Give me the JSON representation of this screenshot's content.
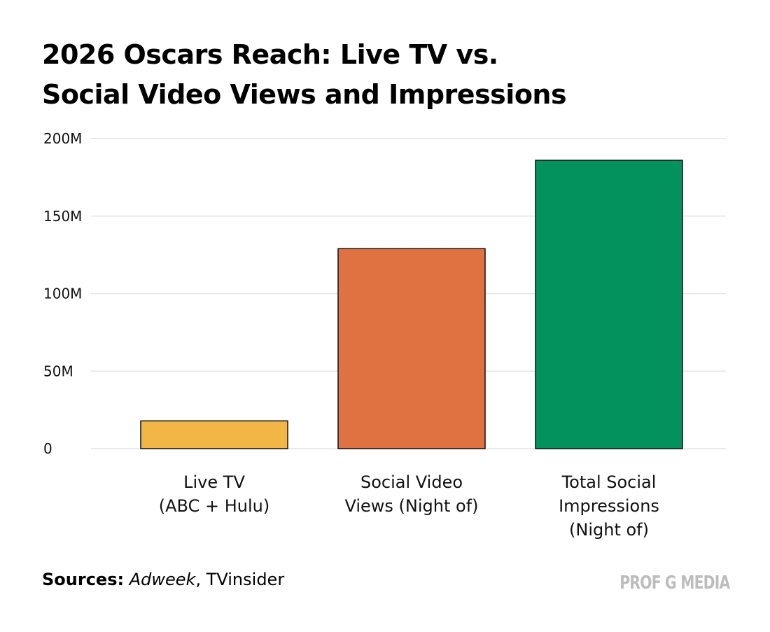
{
  "colors": {
    "background": "#ffffff",
    "text": "#000000",
    "gridline": "#e4e4e4",
    "bar_outline": "#111111",
    "brand": "#bdbdbd"
  },
  "chart_data": {
    "type": "bar",
    "title_lines": [
      "2026 Oscars Reach: Live TV vs.",
      "Social Video Views and Impressions"
    ],
    "categories": [
      {
        "lines": [
          "Live TV",
          "(ABC + Hulu)"
        ]
      },
      {
        "lines": [
          "Social Video",
          "Views (Night of)"
        ]
      },
      {
        "lines": [
          "Total Social",
          "Impressions",
          "(Night of)"
        ]
      }
    ],
    "values": [
      17.9,
      129,
      186
    ],
    "value_unit": "millions",
    "bar_colors": [
      "#f2b646",
      "#e07140",
      "#03915d"
    ],
    "ylim": [
      0,
      200
    ],
    "yticks": [
      0,
      50,
      100,
      150,
      200
    ],
    "ytick_labels": [
      "0",
      "50M",
      "100M",
      "150M",
      "200M"
    ],
    "grid": true,
    "xlabel": "",
    "ylabel": ""
  },
  "footer": {
    "sources_label": "Sources:",
    "sources_primary": "Adweek",
    "sources_rest": ", TVinsider",
    "brand": "PROF G MEDIA"
  }
}
